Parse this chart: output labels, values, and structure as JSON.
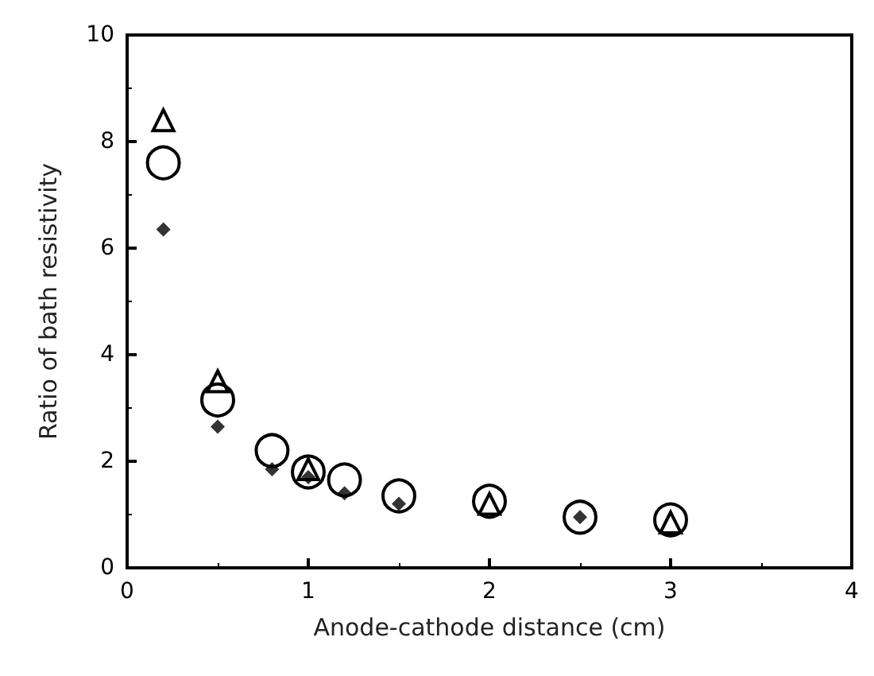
{
  "chart_data": {
    "type": "scatter",
    "xlabel": "Anode-cathode distance (cm)",
    "ylabel": "Ratio of bath resistivity",
    "xlim": [
      0,
      4
    ],
    "xticks": [
      0,
      1,
      2,
      3,
      4
    ],
    "ylim": [
      0,
      10
    ],
    "yticks": [
      0,
      2,
      4,
      6,
      8,
      10
    ],
    "grid": false,
    "series": [
      {
        "marker": "triangle",
        "color": "#000000",
        "x": [
          0.2,
          0.5,
          1,
          2,
          3
        ],
        "values": [
          8.4,
          3.5,
          1.85,
          1.2,
          0.85
        ]
      },
      {
        "marker": "circle",
        "color": "#000000",
        "x": [
          0.2,
          0.5,
          0.8,
          1,
          1.2,
          1.5,
          2,
          2.5,
          3
        ],
        "values": [
          7.6,
          3.15,
          2.2,
          1.8,
          1.65,
          1.35,
          1.25,
          0.95,
          0.9
        ]
      },
      {
        "marker": "diamond",
        "color": "#000000",
        "x": [
          0.2,
          0.5,
          0.8,
          1,
          1.2,
          1.5,
          2.5
        ],
        "values": [
          6.35,
          2.65,
          1.85,
          1.7,
          1.4,
          1.2,
          0.95
        ]
      }
    ]
  }
}
